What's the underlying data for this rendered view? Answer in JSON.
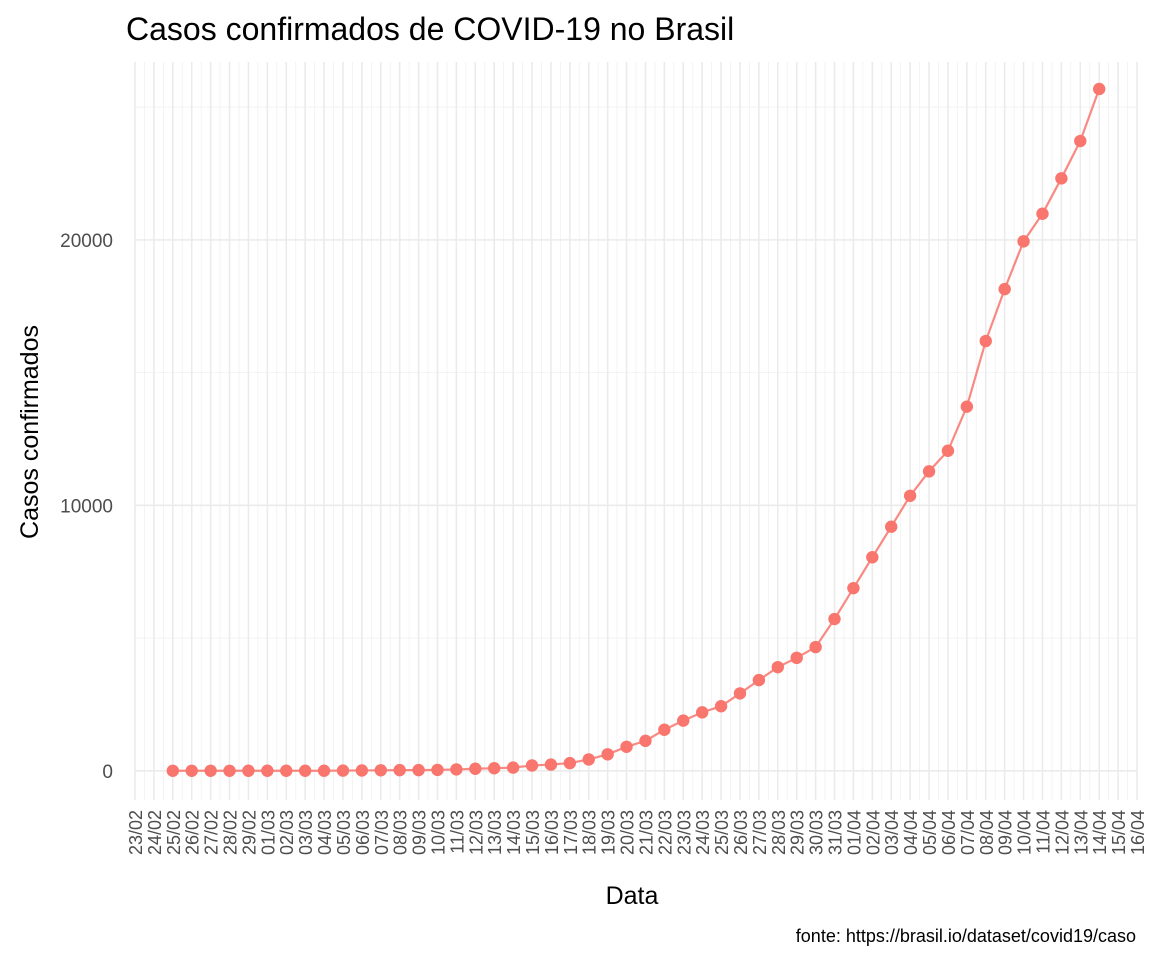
{
  "chart_data": {
    "type": "line",
    "title": "Casos confirmados de COVID-19 no Brasil",
    "xlabel": "Data",
    "ylabel": "Casos confirmados",
    "caption": "fonte: https://brasil.io/dataset/covid19/caso",
    "ylim": [
      -1100,
      26700
    ],
    "yticks": [
      0,
      10000,
      20000
    ],
    "ytick_labels": [
      "0",
      "10000",
      "20000"
    ],
    "xticks": [
      "23/02",
      "24/02",
      "25/02",
      "26/02",
      "27/02",
      "28/02",
      "29/02",
      "01/03",
      "02/03",
      "03/03",
      "04/03",
      "05/03",
      "06/03",
      "07/03",
      "08/03",
      "09/03",
      "10/03",
      "11/03",
      "12/03",
      "13/03",
      "14/03",
      "15/03",
      "16/03",
      "17/03",
      "18/03",
      "19/03",
      "20/03",
      "21/03",
      "22/03",
      "23/03",
      "24/03",
      "25/03",
      "26/03",
      "27/03",
      "28/03",
      "29/03",
      "30/03",
      "31/03",
      "01/04",
      "02/04",
      "03/04",
      "04/04",
      "05/04",
      "06/04",
      "07/04",
      "08/04",
      "09/04",
      "10/04",
      "11/04",
      "12/04",
      "13/04",
      "14/04",
      "15/04",
      "16/04"
    ],
    "grid": true,
    "legend": "none",
    "series": [
      {
        "color": "#F8766D",
        "x": [
          "25/02",
          "26/02",
          "27/02",
          "28/02",
          "29/02",
          "01/03",
          "02/03",
          "03/03",
          "04/03",
          "05/03",
          "06/03",
          "07/03",
          "08/03",
          "09/03",
          "10/03",
          "11/03",
          "12/03",
          "13/03",
          "14/03",
          "15/03",
          "16/03",
          "17/03",
          "18/03",
          "19/03",
          "20/03",
          "21/03",
          "22/03",
          "23/03",
          "24/03",
          "25/03",
          "26/03",
          "27/03",
          "28/03",
          "29/03",
          "30/03",
          "31/03",
          "01/04",
          "02/04",
          "03/04",
          "04/04",
          "05/04",
          "06/04",
          "07/04",
          "08/04",
          "09/04",
          "10/04",
          "11/04",
          "12/04",
          "13/04",
          "14/04"
        ],
        "y": [
          1,
          1,
          1,
          1,
          2,
          2,
          2,
          2,
          3,
          8,
          13,
          19,
          25,
          25,
          34,
          52,
          77,
          98,
          121,
          200,
          234,
          291,
          428,
          621,
          904,
          1128,
          1546,
          1891,
          2201,
          2433,
          2915,
          3417,
          3904,
          4256,
          4661,
          5717,
          6880,
          8044,
          9194,
          10360,
          11281,
          12056,
          13717,
          16188,
          18145,
          19943,
          20984,
          22318,
          23723,
          25684
        ]
      }
    ]
  }
}
